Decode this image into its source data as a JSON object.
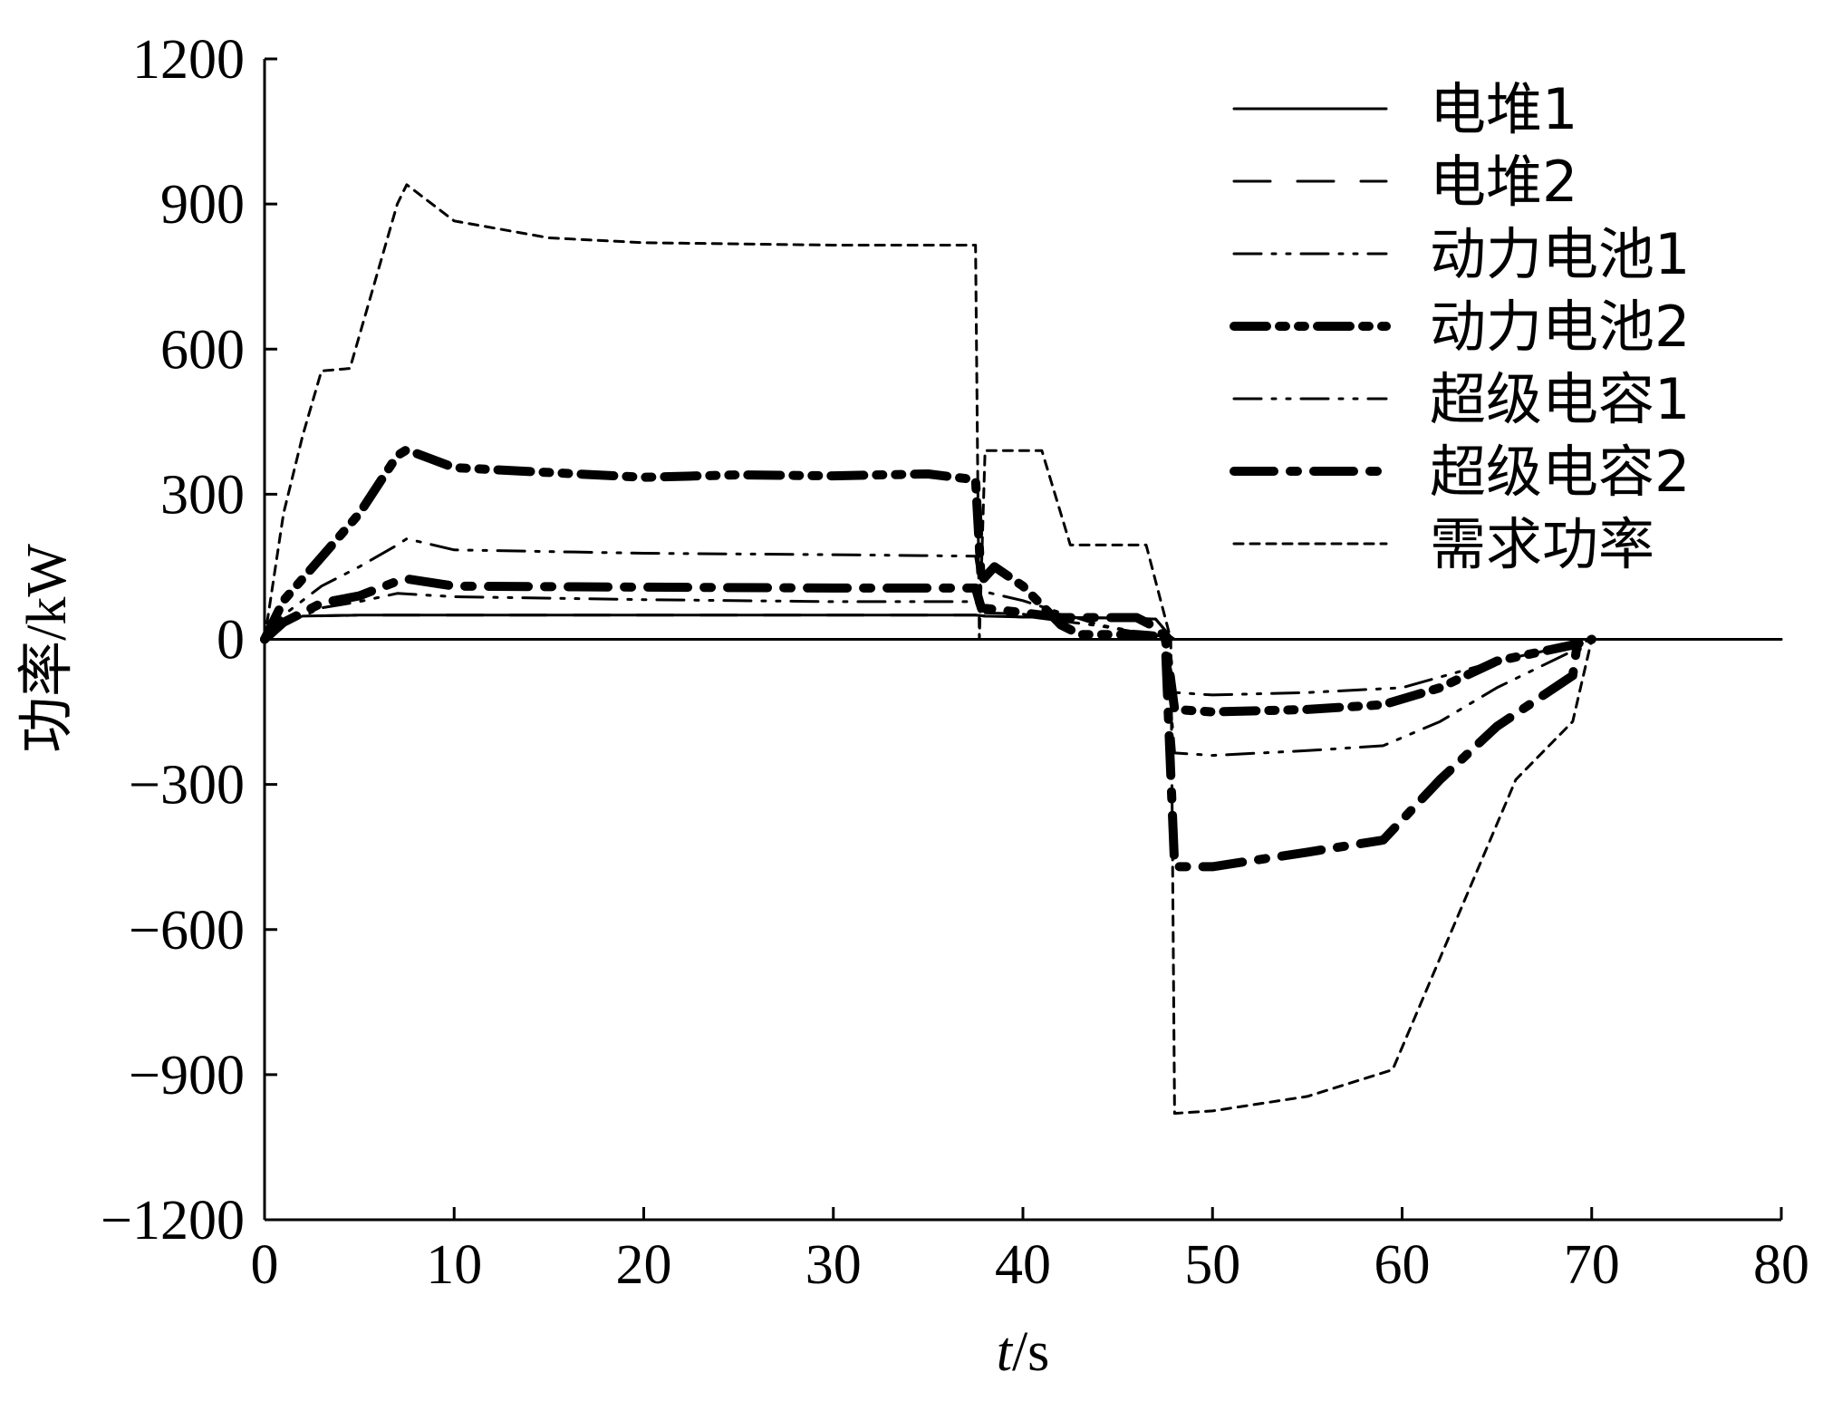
{
  "chart_data": {
    "type": "line",
    "title": "",
    "xlabel_italic": "t",
    "xlabel_unit": "/s",
    "ylabel": "功率/kW",
    "xlim": [
      0,
      80
    ],
    "ylim": [
      -1200,
      1200
    ],
    "xticks": [
      0,
      10,
      20,
      30,
      40,
      50,
      60,
      70,
      80
    ],
    "yticks": [
      1200,
      900,
      600,
      300,
      0,
      -300,
      -600,
      -900,
      -1200
    ],
    "ytick_labels": [
      "1200",
      "900",
      "600",
      "300",
      "0",
      "−300",
      "−600",
      "−900",
      "−1200"
    ],
    "grid": false,
    "legend_position": "top-right",
    "series": [
      {
        "name": "电堆1",
        "style": "solid",
        "color": "#000000",
        "x": [
          0,
          1,
          2,
          5,
          10,
          20,
          30,
          37.5,
          38,
          40,
          45,
          47,
          47.8,
          48,
          55,
          60,
          65,
          69,
          70,
          80
        ],
        "y": [
          0,
          38,
          48,
          50,
          50,
          50,
          50,
          50,
          48,
          46,
          44,
          42,
          5,
          0,
          0,
          0,
          0,
          0,
          0,
          0
        ]
      },
      {
        "name": "电堆2",
        "style": "dash",
        "color": "#000000",
        "x": [
          0,
          1,
          2,
          5,
          10,
          20,
          30,
          37.5,
          38,
          40,
          45,
          47,
          47.8,
          48,
          55,
          60,
          65,
          69,
          70,
          80
        ],
        "y": [
          0,
          38,
          48,
          50,
          50,
          50,
          50,
          50,
          48,
          46,
          44,
          42,
          5,
          0,
          0,
          0,
          0,
          0,
          0,
          0
        ]
      },
      {
        "name": "动力电池1",
        "style": "dashdotdot-thin",
        "color": "#000000",
        "x": [
          0,
          1,
          3,
          5,
          7,
          10,
          20,
          30,
          37.5,
          37.8,
          40,
          42,
          44,
          47.5,
          48,
          50,
          55,
          60,
          65,
          69.2,
          70
        ],
        "y": [
          0,
          30,
          65,
          78,
          95,
          88,
          82,
          78,
          78,
          55,
          52,
          38,
          28,
          5,
          -110,
          -115,
          -110,
          -100,
          -45,
          -10,
          0
        ]
      },
      {
        "name": "动力电池2",
        "style": "dashdotdot-bold",
        "color": "#000000",
        "x": [
          0,
          1,
          3,
          5,
          7,
          7.5,
          10,
          15,
          20,
          25,
          30,
          35,
          37.5,
          37.8,
          38.5,
          40,
          42,
          43,
          44,
          46,
          47.5,
          48,
          50,
          55,
          59,
          62,
          65,
          69.2,
          70
        ],
        "y": [
          0,
          80,
          170,
          260,
          380,
          392,
          355,
          345,
          335,
          340,
          338,
          342,
          330,
          120,
          150,
          110,
          30,
          10,
          10,
          10,
          5,
          -145,
          -150,
          -145,
          -135,
          -100,
          -45,
          -10,
          0
        ]
      },
      {
        "name": "超级电容1",
        "style": "dashdotdot-thin",
        "color": "#000000",
        "x": [
          0,
          1,
          3,
          5,
          7,
          7.5,
          10,
          20,
          30,
          37.5,
          37.8,
          40,
          42,
          44,
          47.5,
          48,
          50,
          55,
          59,
          62,
          65,
          69.2,
          70
        ],
        "y": [
          0,
          50,
          110,
          150,
          195,
          208,
          185,
          178,
          175,
          172,
          100,
          80,
          55,
          30,
          5,
          -235,
          -240,
          -230,
          -220,
          -170,
          -100,
          -20,
          0
        ]
      },
      {
        "name": "超级电容2",
        "style": "dashdot-bold",
        "color": "#000000",
        "x": [
          0,
          1,
          3,
          5,
          7,
          7.5,
          10,
          20,
          30,
          37.5,
          37.8,
          40,
          42,
          43,
          46,
          47,
          47.5,
          48,
          50,
          55,
          59,
          62,
          65,
          69,
          69.2,
          70
        ],
        "y": [
          0,
          35,
          75,
          90,
          120,
          125,
          110,
          108,
          106,
          106,
          65,
          55,
          45,
          45,
          45,
          25,
          5,
          -470,
          -470,
          -440,
          -415,
          -290,
          -180,
          -75,
          -20,
          0
        ]
      },
      {
        "name": "需求功率",
        "style": "short-dash",
        "color": "#000000",
        "x": [
          0,
          1,
          2,
          3,
          4.5,
          7,
          7.5,
          10,
          15,
          20,
          30,
          37.5,
          37.6,
          37.7,
          38,
          41,
          42.5,
          45,
          46.5,
          47.8,
          48,
          50,
          55,
          59.5,
          66,
          69,
          70
        ],
        "y": [
          0,
          260,
          420,
          555,
          560,
          900,
          940,
          865,
          830,
          820,
          815,
          815,
          400,
          0,
          390,
          390,
          195,
          195,
          195,
          0,
          -980,
          -975,
          -945,
          -890,
          -290,
          -170,
          0
        ]
      }
    ]
  }
}
